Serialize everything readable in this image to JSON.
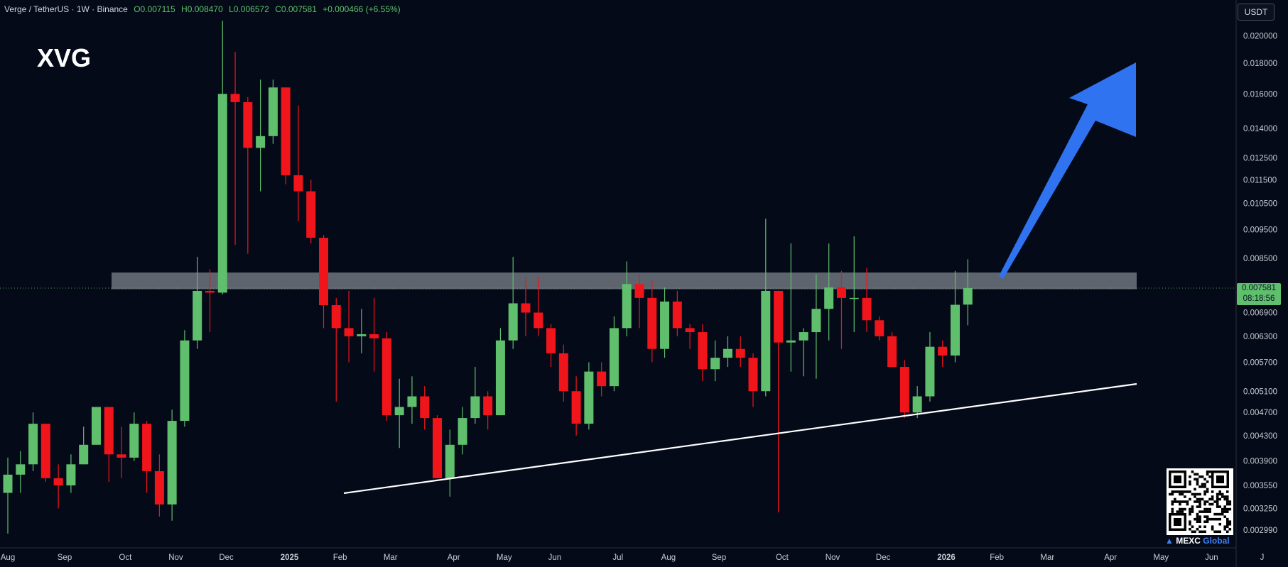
{
  "header": {
    "symbol_line": "Verge / TetherUS · 1W · Binance",
    "open": "O0.007115",
    "high": "H0.008470",
    "low": "L0.006572",
    "close": "C0.007581",
    "change": "+0.000466 (+6.55%)"
  },
  "price_axis": {
    "unit": "USDT",
    "current_price": "0.007581",
    "countdown": "08:18:56"
  },
  "watermark": {
    "brand_left": "MEXC",
    "brand_right": "Global"
  },
  "colors": {
    "background": "#050a18",
    "bull": "#5fbf6c",
    "bear": "#f0141b",
    "resistance_zone": "#9aa0a6",
    "arrow": "#2f73f0",
    "trendline": "#ffffff"
  },
  "chart_data": {
    "type": "candlestick",
    "title": "XVG",
    "interval": "1W",
    "y_scale": "log",
    "ylim": [
      0.0028,
      0.0215
    ],
    "y_ticks": [
      "0.020000",
      "0.018000",
      "0.016000",
      "0.014000",
      "0.012500",
      "0.011500",
      "0.010500",
      "0.009500",
      "0.008500",
      "0.007581",
      "0.006900",
      "0.006300",
      "0.005700",
      "0.005100",
      "0.004700",
      "0.004300",
      "0.003900",
      "0.003550",
      "0.003250",
      "0.002990"
    ],
    "x_labels": [
      {
        "label": "Aug",
        "week": 0
      },
      {
        "label": "Sep",
        "week": 4.5
      },
      {
        "label": "Oct",
        "week": 9.3
      },
      {
        "label": "Nov",
        "week": 13.3
      },
      {
        "label": "Dec",
        "week": 17.3
      },
      {
        "label": "2025",
        "week": 22.3
      },
      {
        "label": "Feb",
        "week": 26.3
      },
      {
        "label": "Mar",
        "week": 30.3
      },
      {
        "label": "Apr",
        "week": 35.3
      },
      {
        "label": "May",
        "week": 39.3
      },
      {
        "label": "Jun",
        "week": 43.3
      },
      {
        "label": "Jul",
        "week": 48.3
      },
      {
        "label": "Aug",
        "week": 52.3
      },
      {
        "label": "Sep",
        "week": 56.3
      },
      {
        "label": "Oct",
        "week": 61.3
      },
      {
        "label": "Nov",
        "week": 65.3
      },
      {
        "label": "Dec",
        "week": 69.3
      },
      {
        "label": "2026",
        "week": 74.3
      },
      {
        "label": "Feb",
        "week": 78.3
      },
      {
        "label": "Mar",
        "week": 82.3
      },
      {
        "label": "Apr",
        "week": 87.3
      },
      {
        "label": "May",
        "week": 91.3
      },
      {
        "label": "Jun",
        "week": 95.3
      },
      {
        "label": "J",
        "week": 99.3
      }
    ],
    "candles": [
      [
        0.00345,
        0.0037,
        0.00395,
        0.00295
      ],
      [
        0.0037,
        0.00385,
        0.00405,
        0.00345
      ],
      [
        0.00385,
        0.0045,
        0.0047,
        0.00375
      ],
      [
        0.0045,
        0.00365,
        0.0045,
        0.0036
      ],
      [
        0.00365,
        0.00355,
        0.00385,
        0.00325
      ],
      [
        0.00355,
        0.00385,
        0.004,
        0.00345
      ],
      [
        0.00385,
        0.00415,
        0.00445,
        0.00385
      ],
      [
        0.00415,
        0.0048,
        0.00465,
        0.00415
      ],
      [
        0.0048,
        0.004,
        0.0048,
        0.0036
      ],
      [
        0.004,
        0.00395,
        0.00445,
        0.00365
      ],
      [
        0.00395,
        0.0045,
        0.0047,
        0.0039
      ],
      [
        0.0045,
        0.00375,
        0.00455,
        0.00345
      ],
      [
        0.00375,
        0.0033,
        0.004,
        0.00315
      ],
      [
        0.0033,
        0.00455,
        0.00475,
        0.0031
      ],
      [
        0.00455,
        0.0062,
        0.00645,
        0.00445
      ],
      [
        0.0062,
        0.0075,
        0.00855,
        0.006
      ],
      [
        0.0075,
        0.00745,
        0.00815,
        0.0064
      ],
      [
        0.00745,
        0.016,
        0.0212,
        0.0074
      ],
      [
        0.016,
        0.0155,
        0.0188,
        0.00895
      ],
      [
        0.0155,
        0.013,
        0.0158,
        0.00865
      ],
      [
        0.013,
        0.0136,
        0.0169,
        0.011
      ],
      [
        0.0136,
        0.0164,
        0.0169,
        0.0132
      ],
      [
        0.0164,
        0.0117,
        0.0164,
        0.0113
      ],
      [
        0.0117,
        0.011,
        0.0153,
        0.0098
      ],
      [
        0.011,
        0.0092,
        0.0115,
        0.009
      ],
      [
        0.0092,
        0.0071,
        0.0093,
        0.0065
      ],
      [
        0.0071,
        0.0065,
        0.0073,
        0.0049
      ],
      [
        0.0065,
        0.0063,
        0.0075,
        0.0057
      ],
      [
        0.0063,
        0.00635,
        0.007,
        0.0059
      ],
      [
        0.00635,
        0.00625,
        0.0073,
        0.0055
      ],
      [
        0.00625,
        0.00465,
        0.0064,
        0.00455
      ],
      [
        0.00465,
        0.0048,
        0.00535,
        0.0041
      ],
      [
        0.0048,
        0.005,
        0.0054,
        0.0045
      ],
      [
        0.005,
        0.0046,
        0.0052,
        0.0044
      ],
      [
        0.0046,
        0.00365,
        0.00465,
        0.00365
      ],
      [
        0.00365,
        0.00415,
        0.0044,
        0.0034
      ],
      [
        0.00415,
        0.0046,
        0.0048,
        0.004
      ],
      [
        0.0046,
        0.005,
        0.0056,
        0.0045
      ],
      [
        0.005,
        0.00465,
        0.0051,
        0.0044
      ],
      [
        0.00465,
        0.0062,
        0.0065,
        0.00465
      ],
      [
        0.0062,
        0.00715,
        0.00855,
        0.006
      ],
      [
        0.00715,
        0.0069,
        0.0079,
        0.0063
      ],
      [
        0.0069,
        0.0065,
        0.0079,
        0.0063
      ],
      [
        0.0065,
        0.0059,
        0.0066,
        0.0056
      ],
      [
        0.0059,
        0.0051,
        0.0061,
        0.0049
      ],
      [
        0.0051,
        0.0045,
        0.0054,
        0.0043
      ],
      [
        0.0045,
        0.0055,
        0.0057,
        0.0044
      ],
      [
        0.0055,
        0.0052,
        0.0057,
        0.005
      ],
      [
        0.0052,
        0.0065,
        0.0068,
        0.0051
      ],
      [
        0.0065,
        0.0077,
        0.0084,
        0.0063
      ],
      [
        0.0077,
        0.0073,
        0.008,
        0.0065
      ],
      [
        0.0073,
        0.006,
        0.0078,
        0.0057
      ],
      [
        0.006,
        0.0072,
        0.0076,
        0.0058
      ],
      [
        0.0072,
        0.0065,
        0.0075,
        0.0063
      ],
      [
        0.0065,
        0.0064,
        0.0066,
        0.006
      ],
      [
        0.0064,
        0.00555,
        0.0066,
        0.0053
      ],
      [
        0.00555,
        0.0058,
        0.0062,
        0.0053
      ],
      [
        0.0058,
        0.006,
        0.0063,
        0.0056
      ],
      [
        0.006,
        0.0058,
        0.0063,
        0.0056
      ],
      [
        0.0058,
        0.0051,
        0.0059,
        0.0048
      ],
      [
        0.0051,
        0.0075,
        0.0099,
        0.005
      ],
      [
        0.0075,
        0.00615,
        0.0075,
        0.0032
      ],
      [
        0.00615,
        0.0062,
        0.009,
        0.0055
      ],
      [
        0.0062,
        0.0064,
        0.0065,
        0.0054
      ],
      [
        0.0064,
        0.007,
        0.008,
        0.00535
      ],
      [
        0.007,
        0.0076,
        0.009,
        0.0062
      ],
      [
        0.0076,
        0.0073,
        0.0081,
        0.006
      ],
      [
        0.0073,
        0.0073,
        0.00925,
        0.0064
      ],
      [
        0.0073,
        0.0067,
        0.0082,
        0.0064
      ],
      [
        0.0067,
        0.0063,
        0.0068,
        0.0062
      ],
      [
        0.0063,
        0.0056,
        0.0064,
        0.0056
      ],
      [
        0.0056,
        0.0047,
        0.00575,
        0.0046
      ],
      [
        0.0047,
        0.005,
        0.0052,
        0.0046
      ],
      [
        0.005,
        0.00605,
        0.0064,
        0.0049
      ],
      [
        0.00605,
        0.00585,
        0.0062,
        0.0056
      ],
      [
        0.00585,
        0.00711,
        0.0081,
        0.0057
      ],
      [
        0.007115,
        0.007581,
        0.00847,
        0.006572
      ]
    ]
  }
}
